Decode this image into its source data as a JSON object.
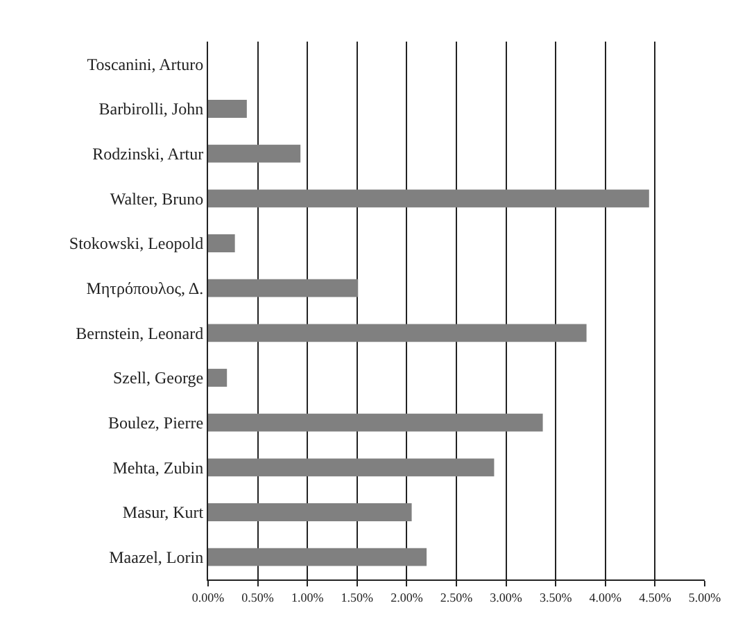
{
  "chart_data": {
    "type": "bar",
    "orientation": "horizontal",
    "categories": [
      "Toscanini, Arturo",
      "Barbirolli, John",
      "Rodzinski, Artur",
      "Walter, Bruno",
      "Stokowski, Leopold",
      "Μητρόπουλος, Δ.",
      "Bernstein, Leonard",
      "Szell, George",
      "Boulez, Pierre",
      "Mehta, Zubin",
      "Masur, Kurt",
      "Maazel, Lorin"
    ],
    "values": [
      0,
      0.39,
      0.93,
      4.44,
      0.27,
      1.51,
      3.81,
      0.19,
      3.37,
      2.88,
      2.05,
      2.2
    ],
    "color": "#808080",
    "xlim": [
      0,
      5
    ],
    "xticks": [
      {
        "value": 0,
        "label": "0.00%"
      },
      {
        "value": 0.5,
        "label": "0.50%"
      },
      {
        "value": 1,
        "label": "1.00%"
      },
      {
        "value": 1.5,
        "label": "1.50%"
      },
      {
        "value": 2,
        "label": "2.00%"
      },
      {
        "value": 2.5,
        "label": "2.50%"
      },
      {
        "value": 3,
        "label": "3.00%"
      },
      {
        "value": 3.5,
        "label": "3.50%"
      },
      {
        "value": 4,
        "label": "4.00%"
      },
      {
        "value": 4.5,
        "label": "4.50%"
      },
      {
        "value": 5,
        "label": "5.00%"
      }
    ],
    "grid": "x"
  }
}
